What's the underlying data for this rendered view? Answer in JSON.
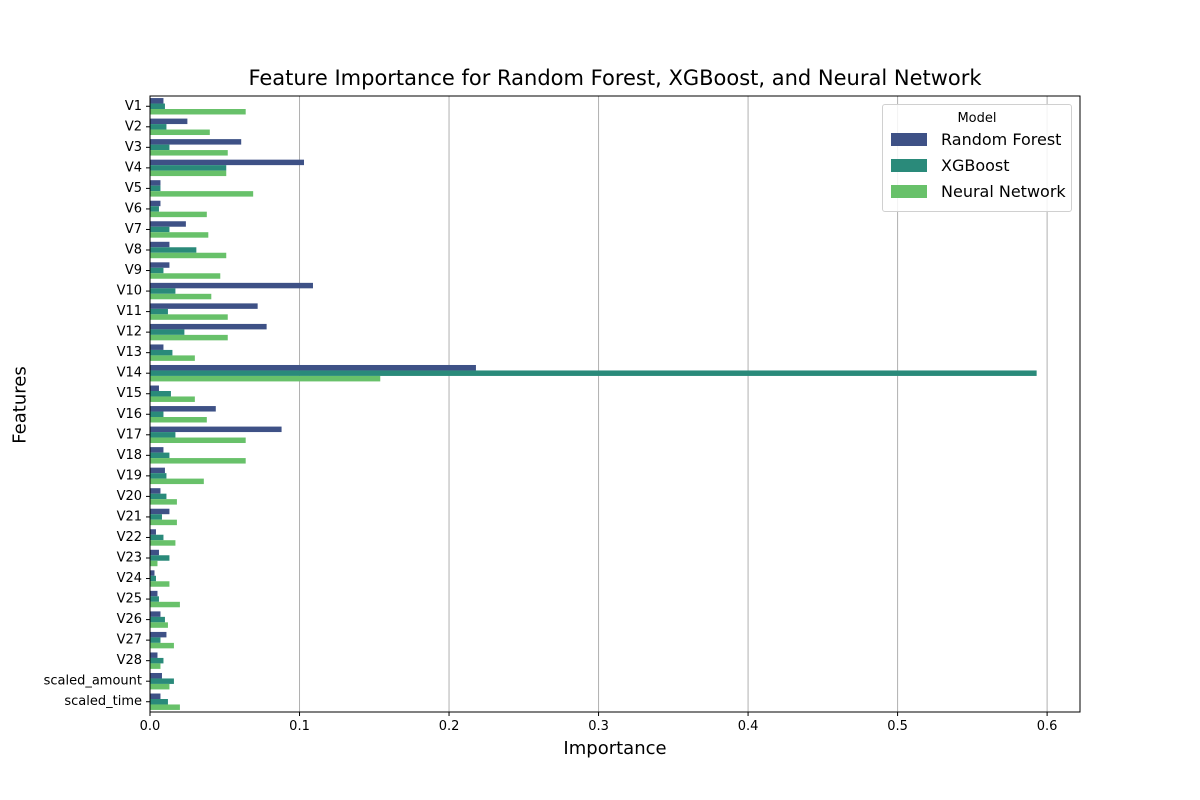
{
  "chart_data": {
    "type": "bar",
    "orientation": "horizontal",
    "title": "Feature Importance for Random Forest, XGBoost, and Neural Network",
    "xlabel": "Importance",
    "ylabel": "Features",
    "xlim": [
      0,
      0.622
    ],
    "xticks": [
      0.0,
      0.1,
      0.2,
      0.3,
      0.4,
      0.5,
      0.6
    ],
    "xtick_labels": [
      "0.0",
      "0.1",
      "0.2",
      "0.3",
      "0.4",
      "0.5",
      "0.6"
    ],
    "grid": "x",
    "legend": {
      "title": "Model",
      "position": "top-right"
    },
    "categories": [
      "V1",
      "V2",
      "V3",
      "V4",
      "V5",
      "V6",
      "V7",
      "V8",
      "V9",
      "V10",
      "V11",
      "V12",
      "V13",
      "V14",
      "V15",
      "V16",
      "V17",
      "V18",
      "V19",
      "V20",
      "V21",
      "V22",
      "V23",
      "V24",
      "V25",
      "V26",
      "V27",
      "V28",
      "scaled_amount",
      "scaled_time"
    ],
    "series": [
      {
        "name": "Random Forest",
        "color": "#3e5186",
        "values": [
          0.009,
          0.025,
          0.061,
          0.103,
          0.007,
          0.007,
          0.024,
          0.013,
          0.013,
          0.109,
          0.072,
          0.078,
          0.009,
          0.218,
          0.006,
          0.044,
          0.088,
          0.009,
          0.01,
          0.007,
          0.013,
          0.004,
          0.006,
          0.003,
          0.005,
          0.007,
          0.011,
          0.005,
          0.008,
          0.007
        ]
      },
      {
        "name": "XGBoost",
        "color": "#2a8a7a",
        "values": [
          0.01,
          0.011,
          0.013,
          0.051,
          0.007,
          0.006,
          0.013,
          0.031,
          0.009,
          0.017,
          0.012,
          0.023,
          0.015,
          0.593,
          0.014,
          0.009,
          0.017,
          0.013,
          0.011,
          0.011,
          0.008,
          0.009,
          0.013,
          0.004,
          0.006,
          0.01,
          0.007,
          0.009,
          0.016,
          0.012
        ]
      },
      {
        "name": "Neural Network",
        "color": "#68c16a",
        "values": [
          0.064,
          0.04,
          0.052,
          0.051,
          0.069,
          0.038,
          0.039,
          0.051,
          0.047,
          0.041,
          0.052,
          0.052,
          0.03,
          0.154,
          0.03,
          0.038,
          0.064,
          0.064,
          0.036,
          0.018,
          0.018,
          0.017,
          0.005,
          0.013,
          0.02,
          0.012,
          0.016,
          0.007,
          0.013,
          0.02
        ]
      }
    ]
  }
}
